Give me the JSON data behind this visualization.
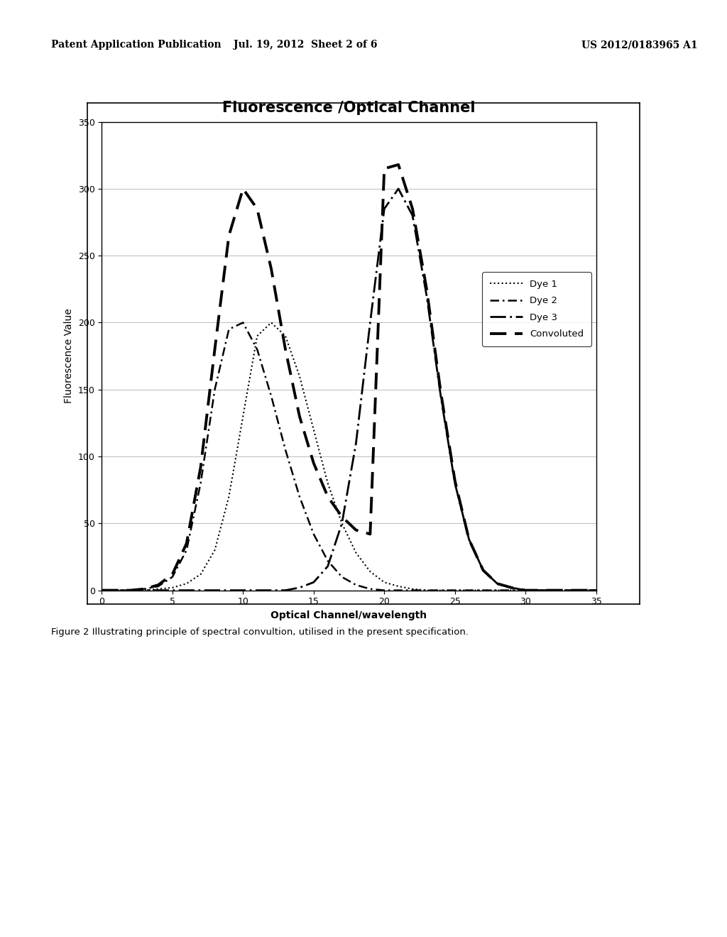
{
  "title": "Fluorescence /Optical Channel",
  "xlabel": "Optical Channel/wavelength",
  "ylabel": "Fluorescence Value",
  "xlim": [
    0,
    35
  ],
  "ylim": [
    0,
    350
  ],
  "xticks": [
    0,
    5,
    10,
    15,
    20,
    25,
    30,
    35
  ],
  "yticks": [
    0,
    50,
    100,
    150,
    200,
    250,
    300,
    350
  ],
  "background_color": "#ffffff",
  "plot_bg_color": "#ffffff",
  "title_fontsize": 15,
  "axis_label_fontsize": 10,
  "tick_fontsize": 9,
  "legend_labels": [
    "Dye 1",
    "Dye 2",
    "Dye 3",
    "Convoluted"
  ],
  "header_left": "Patent Application Publication",
  "header_mid": "Jul. 19, 2012  Sheet 2 of 6",
  "header_right": "US 2012/0183965 A1",
  "caption": "Figure 2 Illustrating principle of spectral convultion, utilised in the present specification.",
  "dye1": {
    "x": [
      0,
      1,
      2,
      3,
      4,
      5,
      6,
      7,
      8,
      9,
      10,
      11,
      12,
      13,
      14,
      15,
      16,
      17,
      18,
      19,
      20,
      21,
      22,
      23,
      24,
      25,
      26,
      27,
      28,
      29,
      30,
      31,
      32,
      33,
      34,
      35
    ],
    "y": [
      0,
      0,
      0,
      0,
      1,
      2,
      5,
      12,
      30,
      70,
      130,
      190,
      200,
      190,
      160,
      120,
      80,
      50,
      28,
      14,
      6,
      3,
      1,
      0,
      0,
      0,
      0,
      0,
      0,
      0,
      0,
      0,
      0,
      0,
      0,
      0
    ]
  },
  "dye2": {
    "x": [
      0,
      1,
      2,
      3,
      4,
      5,
      6,
      7,
      8,
      9,
      10,
      11,
      12,
      13,
      14,
      15,
      16,
      17,
      18,
      19,
      20,
      21,
      22,
      23,
      24,
      25,
      26,
      27,
      28,
      29,
      30,
      31,
      32,
      33,
      34,
      35
    ],
    "y": [
      0,
      0,
      0,
      1,
      3,
      10,
      30,
      80,
      150,
      195,
      200,
      180,
      145,
      105,
      70,
      42,
      22,
      10,
      4,
      1,
      0,
      0,
      0,
      0,
      0,
      0,
      0,
      0,
      0,
      0,
      0,
      0,
      0,
      0,
      0,
      0
    ]
  },
  "dye3": {
    "x": [
      0,
      1,
      2,
      3,
      4,
      5,
      6,
      7,
      8,
      9,
      10,
      11,
      12,
      13,
      14,
      15,
      16,
      17,
      18,
      19,
      20,
      21,
      22,
      23,
      24,
      25,
      26,
      27,
      28,
      29,
      30,
      31,
      32,
      33,
      34,
      35
    ],
    "y": [
      0,
      0,
      0,
      0,
      0,
      0,
      0,
      0,
      0,
      0,
      0,
      0,
      0,
      0,
      2,
      6,
      18,
      50,
      110,
      200,
      285,
      300,
      280,
      220,
      145,
      80,
      38,
      15,
      5,
      2,
      0,
      0,
      0,
      0,
      0,
      0
    ]
  },
  "convoluted": {
    "x": [
      0,
      1,
      2,
      3,
      4,
      5,
      6,
      7,
      8,
      9,
      10,
      11,
      12,
      13,
      14,
      15,
      16,
      17,
      18,
      19,
      20,
      21,
      22,
      23,
      24,
      25,
      26,
      27,
      28,
      29,
      30,
      31,
      32,
      33,
      34,
      35
    ],
    "y": [
      0,
      0,
      0,
      1,
      4,
      12,
      35,
      92,
      180,
      265,
      300,
      285,
      240,
      180,
      130,
      95,
      70,
      55,
      45,
      42,
      315,
      318,
      285,
      225,
      148,
      82,
      38,
      15,
      5,
      2,
      0,
      0,
      0,
      0,
      0,
      0
    ]
  }
}
